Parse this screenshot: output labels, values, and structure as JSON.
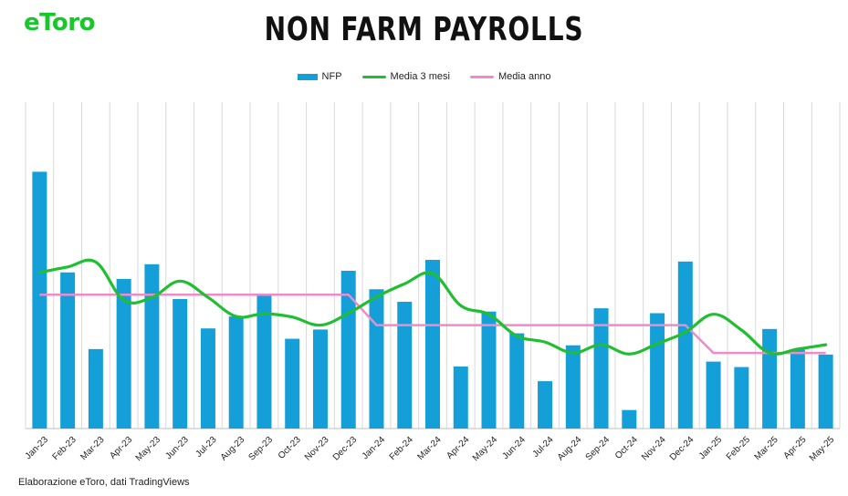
{
  "brand": {
    "logo_text": "eToro"
  },
  "colors": {
    "nfp": "#149fd9",
    "ma3": "#1fbf31",
    "ma_year": "#ee8ccb",
    "grid": "#d9d9d9",
    "brand": "#18c72c"
  },
  "footer": {
    "source": "Elaborazione eToro, dati TradingViews"
  },
  "chart_data": {
    "type": "bar",
    "title": "NON FARM PAYROLLS",
    "categories": [
      "Jan-23",
      "Feb-23",
      "Mar-23",
      "Apr-23",
      "May-23",
      "Jun-23",
      "Jul-23",
      "Aug-23",
      "Sep-23",
      "Oct-23",
      "Nov-23",
      "Dec-23",
      "Jan-24",
      "Feb-24",
      "Mar-24",
      "Apr-24",
      "May-24",
      "Jun-24",
      "Jul-24",
      "Aug-24",
      "Sep-24",
      "Oct-24",
      "Nov-24",
      "Dec-24",
      "Jan-25",
      "Feb-25",
      "Mar-25",
      "Apr-25",
      "May-25"
    ],
    "ylim": [
      0,
      600
    ],
    "grid": "vertical",
    "legend_position": "top-center",
    "series": [
      {
        "name": "NFP",
        "type": "bar",
        "values": [
          472,
          287,
          146,
          275,
          302,
          238,
          184,
          206,
          244,
          165,
          182,
          290,
          256,
          233,
          310,
          114,
          215,
          175,
          87,
          153,
          221,
          34,
          212,
          307,
          123,
          113,
          183,
          145,
          136
        ]
      },
      {
        "name": "Media 3 mesi",
        "type": "line",
        "smooth": true,
        "values": [
          287,
          297,
          306,
          236,
          241,
          271,
          241,
          206,
          211,
          205,
          190,
          212,
          242,
          266,
          285,
          226,
          210,
          170,
          159,
          139,
          154,
          137,
          156,
          177,
          210,
          181,
          139,
          146,
          154
        ]
      },
      {
        "name": "Media anno",
        "type": "line",
        "values": [
          246,
          246,
          246,
          246,
          246,
          246,
          246,
          246,
          246,
          246,
          246,
          246,
          190,
          190,
          190,
          190,
          190,
          190,
          190,
          190,
          190,
          190,
          190,
          190,
          139,
          139,
          139,
          139,
          139
        ]
      }
    ]
  }
}
